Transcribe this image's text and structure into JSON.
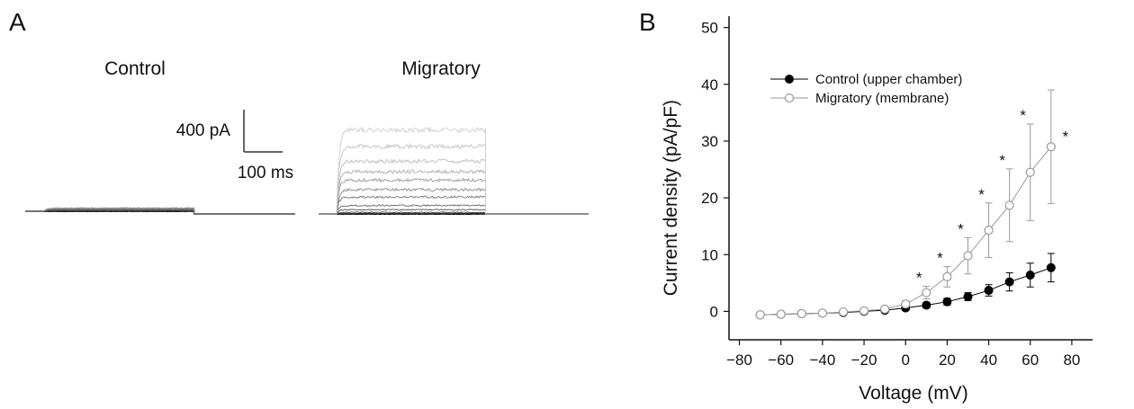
{
  "panel_a": {
    "letter": "A",
    "control_label": "Control",
    "migratory_label": "Migratory",
    "scale_current": "400 pA",
    "scale_time": "100 ms"
  },
  "panel_b": {
    "letter": "B"
  },
  "chart_data": [
    {
      "type": "line",
      "panel": "A-Control",
      "title": "Control",
      "xlabel": "",
      "ylabel": "",
      "x_unit": "ms",
      "y_unit": "pA",
      "scale_bar": {
        "current_pA": 400,
        "time_ms": 100
      },
      "step_duration_ms": 390,
      "trace_amplitudes_pA": [
        0,
        3,
        7,
        12,
        17,
        22,
        27,
        32
      ]
    },
    {
      "type": "line",
      "panel": "A-Migratory",
      "title": "Migratory",
      "xlabel": "",
      "ylabel": "",
      "x_unit": "ms",
      "y_unit": "pA",
      "scale_bar": {
        "current_pA": 400,
        "time_ms": 100
      },
      "step_duration_ms": 385,
      "trace_amplitudes_pA": [
        0,
        5,
        15,
        40,
        80,
        160,
        230,
        320,
        400,
        500,
        640,
        795
      ]
    },
    {
      "type": "line",
      "panel": "B",
      "title": "",
      "xlabel": "Voltage (mV)",
      "ylabel": "Current density (pA/pF)",
      "xlim": [
        -85,
        90
      ],
      "ylim": [
        -5,
        52
      ],
      "xticks": [
        -80,
        -60,
        -40,
        -20,
        0,
        20,
        40,
        60,
        80
      ],
      "yticks": [
        0,
        10,
        20,
        30,
        40,
        50
      ],
      "legend_position": "top-left",
      "x": [
        -70,
        -60,
        -50,
        -40,
        -30,
        -20,
        -10,
        0,
        10,
        20,
        30,
        40,
        50,
        60,
        70
      ],
      "series": [
        {
          "name": "Control (upper chamber)",
          "marker": "filled-circle",
          "color": "#000000",
          "values": [
            -0.6,
            -0.5,
            -0.4,
            -0.3,
            -0.2,
            0.0,
            0.2,
            0.6,
            1.1,
            1.7,
            2.6,
            3.7,
            5.2,
            6.4,
            7.7
          ],
          "errors": [
            0.3,
            0.3,
            0.3,
            0.3,
            0.3,
            0.3,
            0.3,
            0.4,
            0.5,
            0.6,
            0.7,
            1.0,
            1.6,
            2.1,
            2.5
          ]
        },
        {
          "name": "Migratory (membrane)",
          "marker": "open-circle",
          "color": "#9a9a9a",
          "values": [
            -0.6,
            -0.5,
            -0.4,
            -0.3,
            -0.1,
            0.1,
            0.4,
            1.3,
            3.3,
            6.1,
            9.8,
            14.3,
            18.7,
            24.5,
            29.0
          ],
          "errors": [
            0.4,
            0.4,
            0.3,
            0.3,
            0.3,
            0.3,
            0.4,
            0.6,
            1.1,
            1.8,
            3.2,
            4.8,
            6.4,
            8.5,
            10.0
          ],
          "significance": [
            null,
            null,
            null,
            null,
            null,
            null,
            null,
            null,
            "*",
            "*",
            "*",
            "*",
            "*",
            "*",
            "*"
          ]
        }
      ]
    }
  ]
}
